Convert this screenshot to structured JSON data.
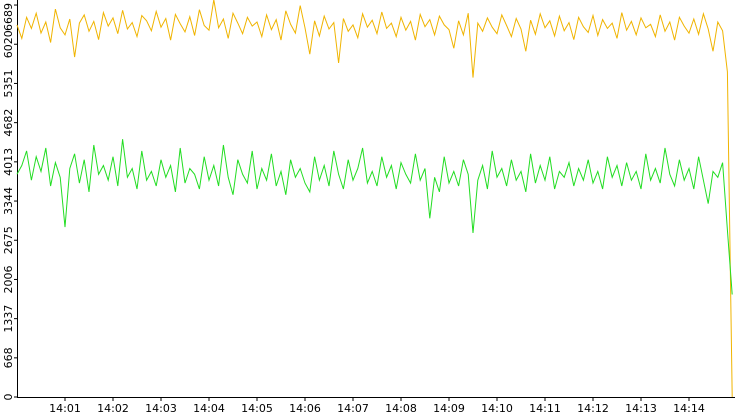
{
  "chart_data": {
    "type": "line",
    "categories": [
      null,
      null,
      null,
      null,
      null,
      null,
      null,
      null,
      null,
      null,
      "14:01",
      null,
      null,
      null,
      null,
      null,
      null,
      null,
      null,
      null,
      "14:02",
      null,
      null,
      null,
      null,
      null,
      null,
      null,
      null,
      null,
      "14:03",
      null,
      null,
      null,
      null,
      null,
      null,
      null,
      null,
      null,
      "14:04",
      null,
      null,
      null,
      null,
      null,
      null,
      null,
      null,
      null,
      "14:05",
      null,
      null,
      null,
      null,
      null,
      null,
      null,
      null,
      null,
      "14:06",
      null,
      null,
      null,
      null,
      null,
      null,
      null,
      null,
      null,
      "14:07",
      null,
      null,
      null,
      null,
      null,
      null,
      null,
      null,
      null,
      "14:08",
      null,
      null,
      null,
      null,
      null,
      null,
      null,
      null,
      null,
      "14:09",
      null,
      null,
      null,
      null,
      null,
      null,
      null,
      null,
      null,
      "14:10",
      null,
      null,
      null,
      null,
      null,
      null,
      null,
      null,
      null,
      "14:11",
      null,
      null,
      null,
      null,
      null,
      null,
      null,
      null,
      null,
      "14:12",
      null,
      null,
      null,
      null,
      null,
      null,
      null,
      null,
      null,
      "14:13",
      null,
      null,
      null,
      null,
      null,
      null,
      null,
      null,
      null,
      "14:14",
      null,
      null,
      null,
      null,
      null,
      null,
      null,
      null,
      null
    ],
    "series": [
      {
        "color": "#f0b400",
        "values": [
          6350,
          6120,
          6480,
          6290,
          6550,
          6210,
          6400,
          6050,
          6620,
          6300,
          6180,
          6450,
          5800,
          6380,
          6520,
          6240,
          6410,
          6100,
          6560,
          6330,
          6470,
          6200,
          6600,
          6280,
          6390,
          6150,
          6510,
          6420,
          6250,
          6580,
          6310,
          6460,
          6090,
          6530,
          6370,
          6230,
          6490,
          6170,
          6610,
          6340,
          6260,
          6780,
          6300,
          6450,
          6120,
          6550,
          6380,
          6200,
          6480,
          6330,
          6400,
          6150,
          6520,
          6270,
          6440,
          6090,
          6590,
          6360,
          6210,
          6680,
          6300,
          5850,
          6420,
          6160,
          6500,
          6280,
          6390,
          5700,
          6460,
          6240,
          6350,
          6130,
          6540,
          6310,
          6430,
          6200,
          6570,
          6290,
          6380,
          6150,
          6480,
          6260,
          6410,
          6090,
          6530,
          6320,
          6440,
          6180,
          6500,
          6350,
          6270,
          5950,
          6420,
          6180,
          6550,
          5450,
          6380,
          6240,
          6470,
          6310,
          6200,
          6520,
          6340,
          6150,
          6460,
          6280,
          5900,
          6430,
          6190,
          6540,
          6300,
          6420,
          6160,
          6500,
          6250,
          6390,
          6100,
          6480,
          6320,
          6220,
          6510,
          6170,
          6440,
          6290,
          6380,
          6120,
          6560,
          6260,
          6410,
          6180,
          6470,
          6300,
          6360,
          6150,
          6520,
          6240,
          6400,
          6090,
          6480,
          6330,
          6210,
          6450,
          6190,
          6540,
          6280,
          5900,
          6400,
          6250,
          5550,
          0
        ]
      },
      {
        "color": "#22dd22",
        "values": [
          3800,
          3950,
          4200,
          3700,
          4100,
          3850,
          4250,
          3600,
          4000,
          3750,
          2900,
          3900,
          4150,
          3650,
          4050,
          3500,
          4300,
          3800,
          3950,
          3700,
          4100,
          3600,
          4400,
          3750,
          3900,
          3550,
          4200,
          3700,
          3850,
          3600,
          4050,
          3750,
          3950,
          3500,
          4250,
          3650,
          3900,
          3800,
          3550,
          4100,
          3700,
          3950,
          3600,
          4300,
          3750,
          3450,
          4050,
          3800,
          3650,
          4200,
          3550,
          3900,
          3700,
          4150,
          3600,
          3850,
          3450,
          4050,
          3750,
          3900,
          3650,
          3500,
          4100,
          3700,
          3950,
          3600,
          4200,
          3800,
          3550,
          4050,
          3700,
          3900,
          4250,
          3650,
          3850,
          3600,
          4100,
          3750,
          3950,
          3550,
          4000,
          3800,
          3650,
          4150,
          3700,
          3900,
          3050,
          3750,
          3500,
          4100,
          3650,
          3850,
          3600,
          4050,
          3800,
          2800,
          3700,
          3950,
          3550,
          4200,
          3750,
          3900,
          3600,
          4050,
          3700,
          3850,
          3500,
          4150,
          3650,
          3950,
          3700,
          4100,
          3550,
          3850,
          3750,
          4000,
          3600,
          3900,
          3700,
          4050,
          3650,
          3850,
          3550,
          4100,
          3750,
          3950,
          3600,
          4000,
          3700,
          3850,
          3550,
          4150,
          3700,
          3900,
          3650,
          4250,
          3800,
          3600,
          4050,
          3700,
          3900,
          3550,
          4100,
          3700,
          3300,
          3850,
          3750,
          4000,
          2850,
          1750
        ]
      }
    ],
    "ylim": [
      0,
      6775
    ],
    "yticks": [
      0,
      668,
      1337,
      2006,
      2675,
      3344,
      4013,
      4682,
      5351,
      6020,
      6689
    ]
  }
}
